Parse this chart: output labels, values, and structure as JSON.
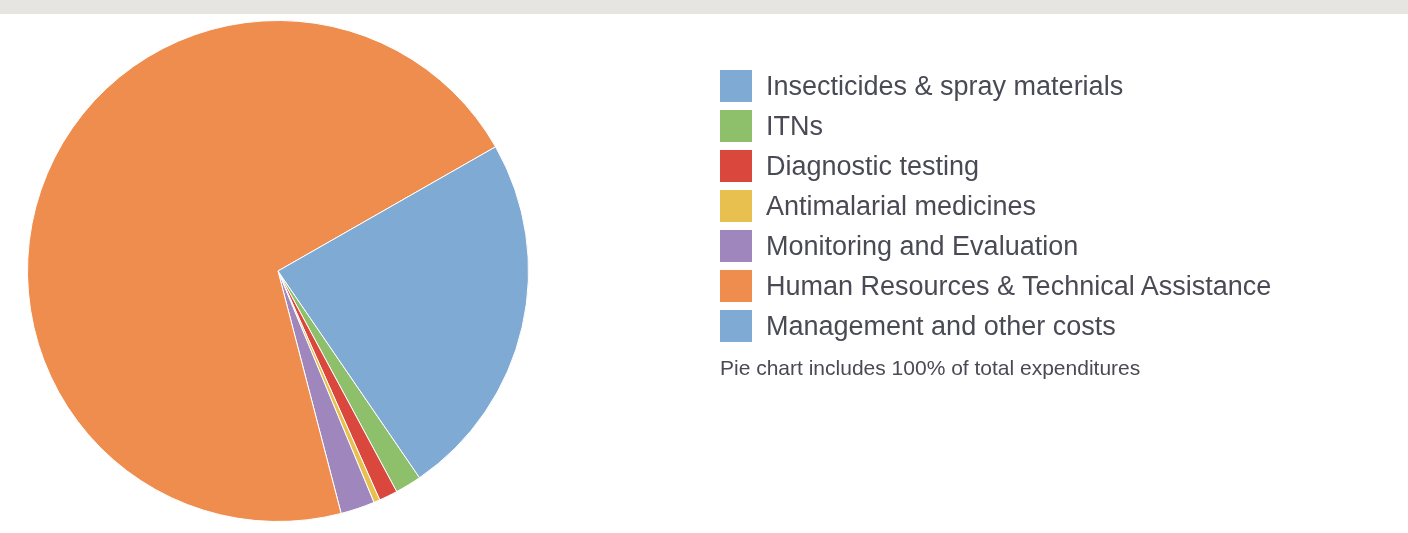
{
  "chart_data": {
    "type": "pie",
    "categories": [
      "Insecticides & spray materials",
      "ITNs",
      "Diagnostic testing",
      "Antimalarial medicines",
      "Monitoring and Evaluation",
      "Human Resources & Technical Assistance",
      "Management and other costs"
    ],
    "values": [
      0,
      1.7,
      1.2,
      0.4,
      2.2,
      70.8,
      23.7
    ],
    "colors": [
      "#7eaad4",
      "#8ec06c",
      "#d9473d",
      "#e8c04f",
      "#9f86bd",
      "#ef8d4e",
      "#7eaad4"
    ],
    "legend": "right",
    "annotations": [
      "Pie chart includes 100% of total expenditures"
    ]
  }
}
